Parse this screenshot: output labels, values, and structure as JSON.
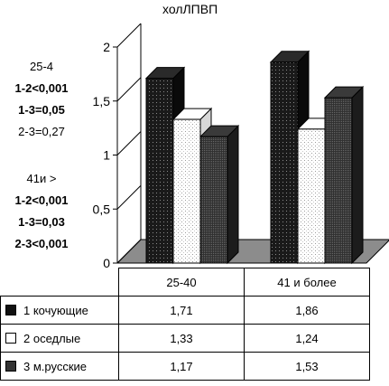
{
  "chart_data": {
    "type": "bar",
    "title": "холЛПВП",
    "categories": [
      "25-40",
      "41 и более"
    ],
    "series": [
      {
        "name": "1 кочующие",
        "values": [
          1.71,
          1.86
        ],
        "value_labels": [
          "1,71",
          "1,86"
        ],
        "color": "#1a1a1a",
        "pattern": "dark-dotted"
      },
      {
        "name": "2 оседлые",
        "values": [
          1.33,
          1.24
        ],
        "value_labels": [
          "1,33",
          "1,24"
        ],
        "color": "#ffffff",
        "pattern": "light-dotted"
      },
      {
        "name": "3 м.русские",
        "values": [
          1.17,
          1.53
        ],
        "value_labels": [
          "1,17",
          "1,53"
        ],
        "color": "#2e2e2e",
        "pattern": "dark-checkered"
      }
    ],
    "ylim": [
      0,
      2
    ],
    "yticks": [
      0,
      0.5,
      1,
      1.5,
      2
    ],
    "ytick_labels": [
      "0",
      "0,5",
      "1",
      "1,5",
      "2"
    ],
    "three_d": true,
    "grid": false,
    "legend": "table-below"
  },
  "annotations": {
    "group1": {
      "header": "25-4",
      "lines": [
        {
          "text": "1-2<0,001",
          "bold": true
        },
        {
          "text": "1-3=0,05",
          "bold": true
        },
        {
          "text": "2-3=0,27",
          "bold": false
        }
      ]
    },
    "group2": {
      "header": "41и >",
      "lines": [
        {
          "text": "1-2<0,001",
          "bold": true
        },
        {
          "text": "1-3=0,03",
          "bold": true
        },
        {
          "text": "2-3<0,001",
          "bold": true
        }
      ]
    }
  }
}
